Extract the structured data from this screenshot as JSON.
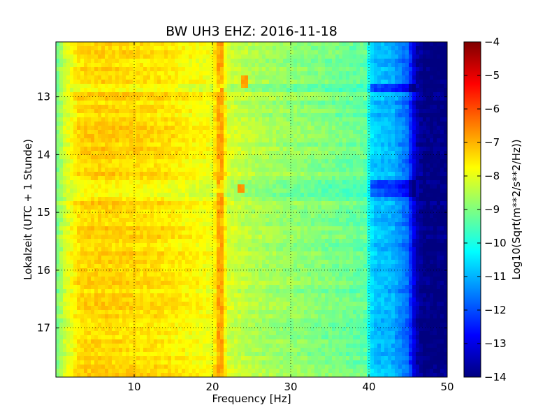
{
  "chart_data": {
    "type": "heatmap",
    "title": "BW UH3 EHZ: 2016-11-18",
    "xlabel": "Frequency [Hz]",
    "ylabel": "Lokalzeit (UTC + 1 Stunde)",
    "xlim": [
      0,
      50
    ],
    "ylim": [
      12.05,
      17.85
    ],
    "y_inverted": true,
    "x_ticks": [
      10,
      20,
      30,
      40,
      50
    ],
    "y_ticks": [
      13,
      14,
      15,
      16,
      17
    ],
    "grid": true,
    "colormap": "jet",
    "colorbar": {
      "label": "Log10(Sqrt(m**2/s**2/Hz))",
      "range": [
        -14,
        -4
      ],
      "ticks": [
        -4,
        -5,
        -6,
        -7,
        -8,
        -9,
        -10,
        -11,
        -12,
        -13,
        -14
      ]
    },
    "frequency_profile": {
      "x": [
        0,
        1,
        3,
        6,
        10,
        14,
        17,
        20,
        21,
        22,
        25,
        28,
        32,
        36,
        39.5,
        40.5,
        43,
        45,
        46,
        47,
        50
      ],
      "values": [
        -9.2,
        -8.3,
        -7.4,
        -7.3,
        -7.4,
        -7.5,
        -7.7,
        -7.9,
        -6.8,
        -8.2,
        -8.5,
        -8.7,
        -8.9,
        -9.1,
        -9.3,
        -10.8,
        -11.0,
        -11.8,
        -13.5,
        -14.0,
        -14.0
      ]
    },
    "spectral_line": {
      "frequency": 21,
      "value": -6.8,
      "shifted_segments": [
        {
          "from_time": 12.6,
          "to_time": 12.85,
          "frequency": 24
        },
        {
          "from_time": 14.5,
          "to_time": 14.65,
          "frequency": 23.5
        }
      ]
    },
    "noise_bands": [
      {
        "time": 12.85,
        "delta": -1.2
      },
      {
        "time": 14.5,
        "delta": -1.4
      },
      {
        "time": 14.65,
        "delta": -1.0
      }
    ]
  }
}
